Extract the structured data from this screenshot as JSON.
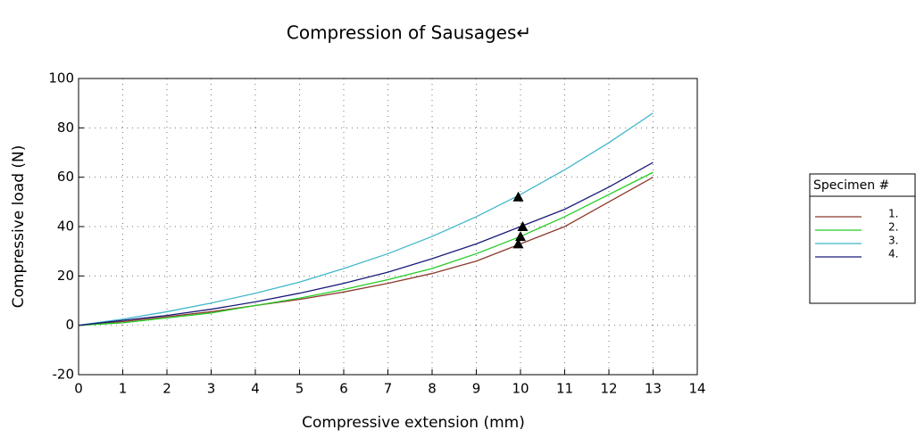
{
  "chart_data": {
    "type": "line",
    "title": "Compression of Sausages↵",
    "x_label": "Compressive extension (mm)",
    "y_label": "Compressive load (N)",
    "x": [
      0,
      1,
      2,
      3,
      4,
      5,
      6,
      7,
      8,
      9,
      10,
      11,
      12,
      13
    ],
    "series": [
      {
        "name": "1.",
        "color": "#8b3a2f",
        "values": [
          0,
          1.5,
          3.5,
          5.5,
          8,
          10.5,
          13.5,
          17,
          21,
          26,
          33,
          40,
          50,
          60
        ]
      },
      {
        "name": "2.",
        "color": "#22cc22",
        "values": [
          0,
          1,
          3,
          5,
          8,
          11,
          14.5,
          18.5,
          23,
          29,
          36,
          44,
          53,
          62
        ]
      },
      {
        "name": "3.",
        "color": "#40b8c8",
        "values": [
          0,
          2.5,
          5.5,
          9,
          13,
          17.5,
          23,
          29,
          36,
          44,
          53,
          63,
          74,
          86
        ]
      },
      {
        "name": "4.",
        "color": "#1a1a7a",
        "values": [
          0,
          2,
          4,
          6.5,
          9.5,
          13,
          17,
          21.5,
          27,
          33,
          40,
          47,
          56,
          66
        ]
      }
    ],
    "break_points": {
      "x": [
        9.95,
        10.05,
        10.0,
        9.95
      ],
      "y": [
        52,
        40,
        36,
        33
      ],
      "color": "#000000"
    },
    "legend_title": "Specimen #",
    "legend_position": "right",
    "xlim": [
      0,
      14
    ],
    "xticks": [
      0,
      1,
      2,
      3,
      4,
      5,
      6,
      7,
      8,
      9,
      10,
      11,
      12,
      13,
      14
    ],
    "ylim": [
      -20,
      100
    ],
    "yticks": [
      -20,
      0,
      20,
      40,
      60,
      80,
      100
    ],
    "grid": true
  }
}
